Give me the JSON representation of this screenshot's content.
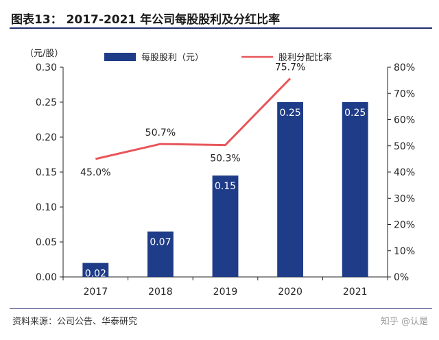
{
  "figure": {
    "title": "图表13： 2017-2021 年公司每股股利及分红比率",
    "source": "资料来源：公司公告、华泰研究",
    "watermark": "知乎 @认是"
  },
  "chart_data": {
    "type": "bar",
    "categories": [
      "2017",
      "2018",
      "2019",
      "2020",
      "2021"
    ],
    "series": [
      {
        "name": "每股股利（元）",
        "type": "bar",
        "axis": "left",
        "values": [
          0.02,
          0.065,
          0.145,
          0.25,
          0.25
        ],
        "labels": [
          "0.02",
          "0.07",
          "0.15",
          "0.25",
          "0.25"
        ],
        "color": "#1f3c88"
      },
      {
        "name": "股利分配比率",
        "type": "line",
        "axis": "right",
        "values": [
          45.0,
          50.7,
          50.3,
          75.7,
          null
        ],
        "labels": [
          "45.0%",
          "50.7%",
          "50.3%",
          "75.7%",
          ""
        ],
        "color": "#e8565a"
      }
    ],
    "y_left": {
      "unit_label": "（元/股）",
      "range": [
        0,
        0.3
      ],
      "ticks": [
        "0.00",
        "0.05",
        "0.10",
        "0.15",
        "0.20",
        "0.25",
        "0.30"
      ]
    },
    "y_right": {
      "range": [
        0,
        80
      ],
      "ticks": [
        "0%",
        "10%",
        "20%",
        "30%",
        "40%",
        "50%",
        "60%",
        "70%",
        "80%"
      ]
    },
    "grid": false,
    "legend_position": "top"
  }
}
